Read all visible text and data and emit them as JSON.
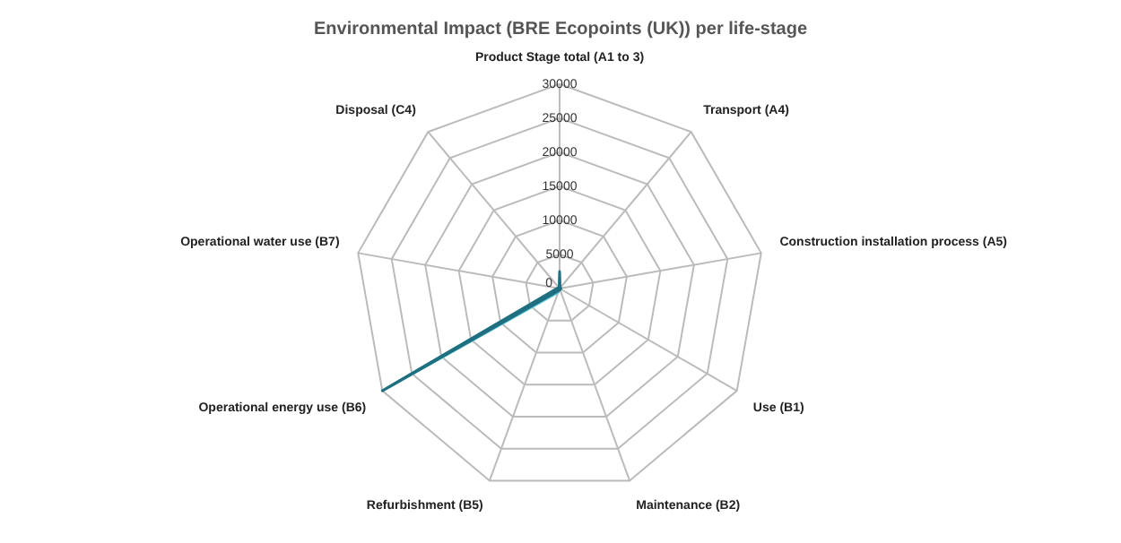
{
  "chart_data": {
    "type": "radar",
    "title": "Environmental Impact (BRE Ecopoints (UK)) per life-stage",
    "categories": [
      "Product Stage total (A1 to 3)",
      "Transport (A4)",
      "Construction installation process (A5)",
      "Use (B1)",
      "Maintenance (B2)",
      "Refurbishment (B5)",
      "Operational energy use (B6)",
      "Operational water use (B7)",
      "Disposal (C4)"
    ],
    "series": [
      {
        "color": "#1f6f80",
        "values": [
          2500,
          100,
          200,
          0,
          200,
          300,
          30000,
          300,
          100
        ]
      },
      {
        "color": "#5cc8dc",
        "values": [
          1500,
          100,
          100,
          0,
          100,
          600,
          29000,
          200,
          100
        ]
      }
    ],
    "ylim": [
      0,
      30000
    ],
    "yticks": [
      0,
      5000,
      10000,
      15000,
      20000,
      25000,
      30000
    ],
    "grid": true,
    "legend": false,
    "marker": "none"
  }
}
